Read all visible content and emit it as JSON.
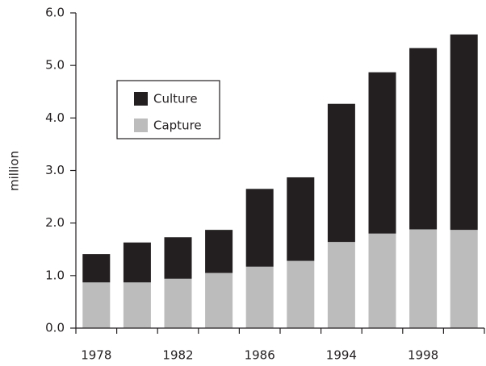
{
  "chart_data": {
    "type": "stacked_bar",
    "y_label": "million",
    "categories": [
      "1978",
      null,
      "1982",
      null,
      "1986",
      null,
      "1994",
      null,
      "1998",
      null
    ],
    "series": [
      {
        "name": "Capture",
        "color": "#bcbcbc",
        "values": [
          0.87,
          0.87,
          0.94,
          1.05,
          1.17,
          1.28,
          1.64,
          1.8,
          1.88,
          1.87
        ]
      },
      {
        "name": "Culture",
        "color": "#231f20",
        "values": [
          0.54,
          0.76,
          0.79,
          0.82,
          1.48,
          1.59,
          2.63,
          3.07,
          3.45,
          3.72
        ]
      }
    ],
    "ylim": [
      0,
      6
    ],
    "yticks": [
      {
        "value": 0,
        "label": "0.0"
      },
      {
        "value": 1,
        "label": "1.0"
      },
      {
        "value": 2,
        "label": "2.0"
      },
      {
        "value": 3,
        "label": "3.0"
      },
      {
        "value": 4,
        "label": "4.0"
      },
      {
        "value": 5,
        "label": "5.0"
      },
      {
        "value": 6,
        "label": "6.0"
      }
    ],
    "grid": false
  }
}
